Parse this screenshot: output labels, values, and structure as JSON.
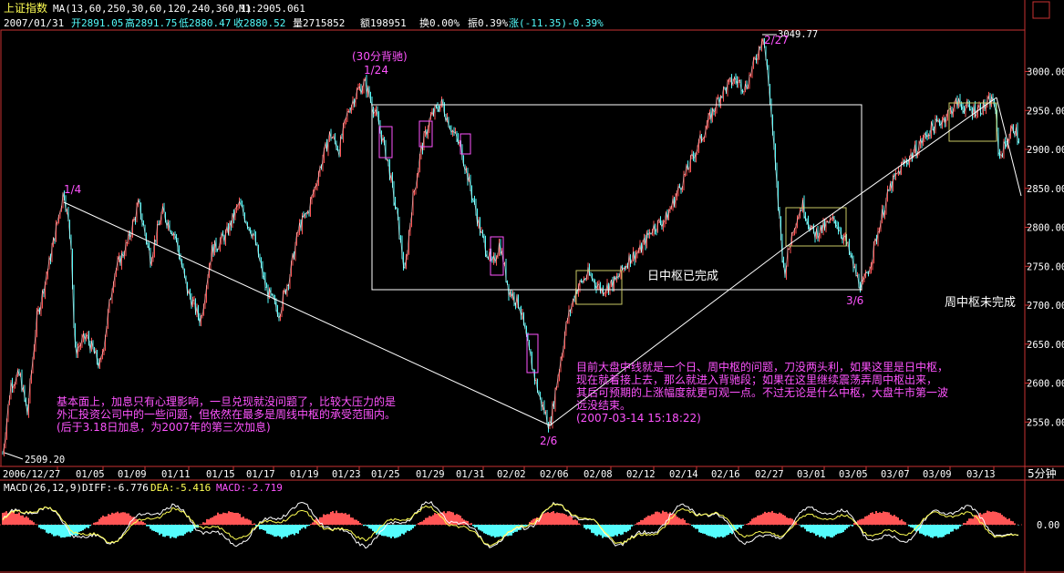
{
  "header": {
    "title": "上证指数",
    "ma_label": "MA(13,60,250,30,60,120,240,360,1)",
    "ma_value": "M1:2905.061",
    "quote_line": {
      "date": "2007/01/31",
      "open": "开2891.05",
      "high": "高2891.75",
      "low": "低2880.47",
      "close": "收2880.52",
      "volume": "量2715852",
      "amount": "额198951",
      "turnover": "换0.00%",
      "amplitude": "振0.39%",
      "change": "涨(-11.35)-0.39%"
    }
  },
  "main": {
    "price_ticks": [
      "3000.00",
      "2950.00",
      "2900.00",
      "2850.00",
      "2800.00",
      "2750.00",
      "2700.00",
      "2650.00",
      "2600.00",
      "2550.00"
    ],
    "date_ticks": [
      "2006/12/27",
      "01/05",
      "01/09",
      "01/11",
      "01/15",
      "01/17",
      "01/19",
      "01/23",
      "01/25",
      "01/29",
      "01/31",
      "02/02",
      "02/06",
      "02/08",
      "02/12",
      "02/14",
      "02/16",
      "02/27",
      "03/01",
      "03/05",
      "03/07",
      "03/09",
      "03/13"
    ],
    "period_label": "5分钟",
    "annotations": {
      "low_price": "2509.20",
      "high_price": "3049.77",
      "label_1_4": "1/4",
      "label_30min": "(30分背驰)",
      "label_1_24": "1/24",
      "label_2_6": "2/6",
      "label_2_27": "2/27",
      "label_3_6": "3/6",
      "daily_center": "日中枢已完成",
      "weekly_center": "周中枢未完成",
      "note_left_1": "基本面上，加息只有心理影响，一旦兑现就没问题了，比较大压力的是",
      "note_left_2": "外汇投资公司中的一些问题，但依然在最多是周线中枢的承受范围内。",
      "note_left_3": "(后于3.18日加息，为2007年的第三次加息)",
      "note_right_1": "目前大盘中线就是一个日、周中枢的问题，刀没两头利，如果这里是日中枢，",
      "note_right_2": "现在就着接上去，那么就进入背驰段；如果在这里继续震荡弄周中枢出来，",
      "note_right_3": "其后可预期的上涨幅度就更可观一点。不过无论是什么中枢，大盘牛市第一波",
      "note_right_4": "远没结束。",
      "note_right_5": "(2007-03-14 15:18:22)"
    }
  },
  "macd": {
    "label": "MACD(26,12,9)",
    "diff": "DIFF:-6.776",
    "dea": "DEA:-5.416",
    "macd": "MACD:-2.719",
    "zero_tick": "0.00"
  },
  "colors": {
    "background": "#000000",
    "axis": "#c83232",
    "up": "#ff5555",
    "down": "#54fcfc",
    "macd_line": "#ffff54",
    "annotation": "#ff54ff",
    "frame": "#ffffff"
  },
  "chart_data": [
    {
      "type": "candlestick",
      "title": "上证指数",
      "ylim": [
        2500,
        3060
      ],
      "x_range": [
        "2006/12/27",
        "2007/03/14"
      ],
      "x": [
        "2006/12/27",
        "01/04",
        "01/05",
        "01/09",
        "01/11",
        "01/15",
        "01/17",
        "01/19",
        "01/23",
        "01/24",
        "01/25",
        "01/29",
        "01/31",
        "02/02",
        "02/06",
        "02/08",
        "02/12",
        "02/14",
        "02/16",
        "02/27",
        "03/01",
        "03/05",
        "03/06",
        "03/07",
        "03/09",
        "03/13"
      ],
      "close_approx": [
        2509.2,
        2845,
        2640,
        2820,
        2700,
        2790,
        2690,
        2840,
        2960,
        2985,
        2870,
        2960,
        2860,
        2760,
        2545,
        2720,
        2760,
        2890,
        2990,
        3049.77,
        2800,
        2760,
        2722,
        2890,
        2950,
        2900
      ],
      "key_points": [
        {
          "label": "2006/12/27",
          "value": 2509.2
        },
        {
          "label": "1/4",
          "value": 2845
        },
        {
          "label": "1/24",
          "value": 2985
        },
        {
          "label": "2/6",
          "value": 2545
        },
        {
          "label": "2/27",
          "value": 3049.77
        },
        {
          "label": "3/6",
          "value": 2722
        }
      ],
      "zones": [
        {
          "name": "日中枢已完成",
          "from": "01/24",
          "to": "03/06",
          "low": 2720,
          "high": 2960
        },
        {
          "name": "周中枢未完成",
          "from": "01/04",
          "to": "03/13",
          "note": "trend lines"
        }
      ],
      "grid": false
    },
    {
      "type": "bar",
      "title": "MACD(26,12,9)",
      "series": [
        {
          "name": "DIFF",
          "last": -6.776
        },
        {
          "name": "DEA",
          "last": -5.416
        },
        {
          "name": "MACD",
          "last": -2.719
        }
      ]
    }
  ]
}
